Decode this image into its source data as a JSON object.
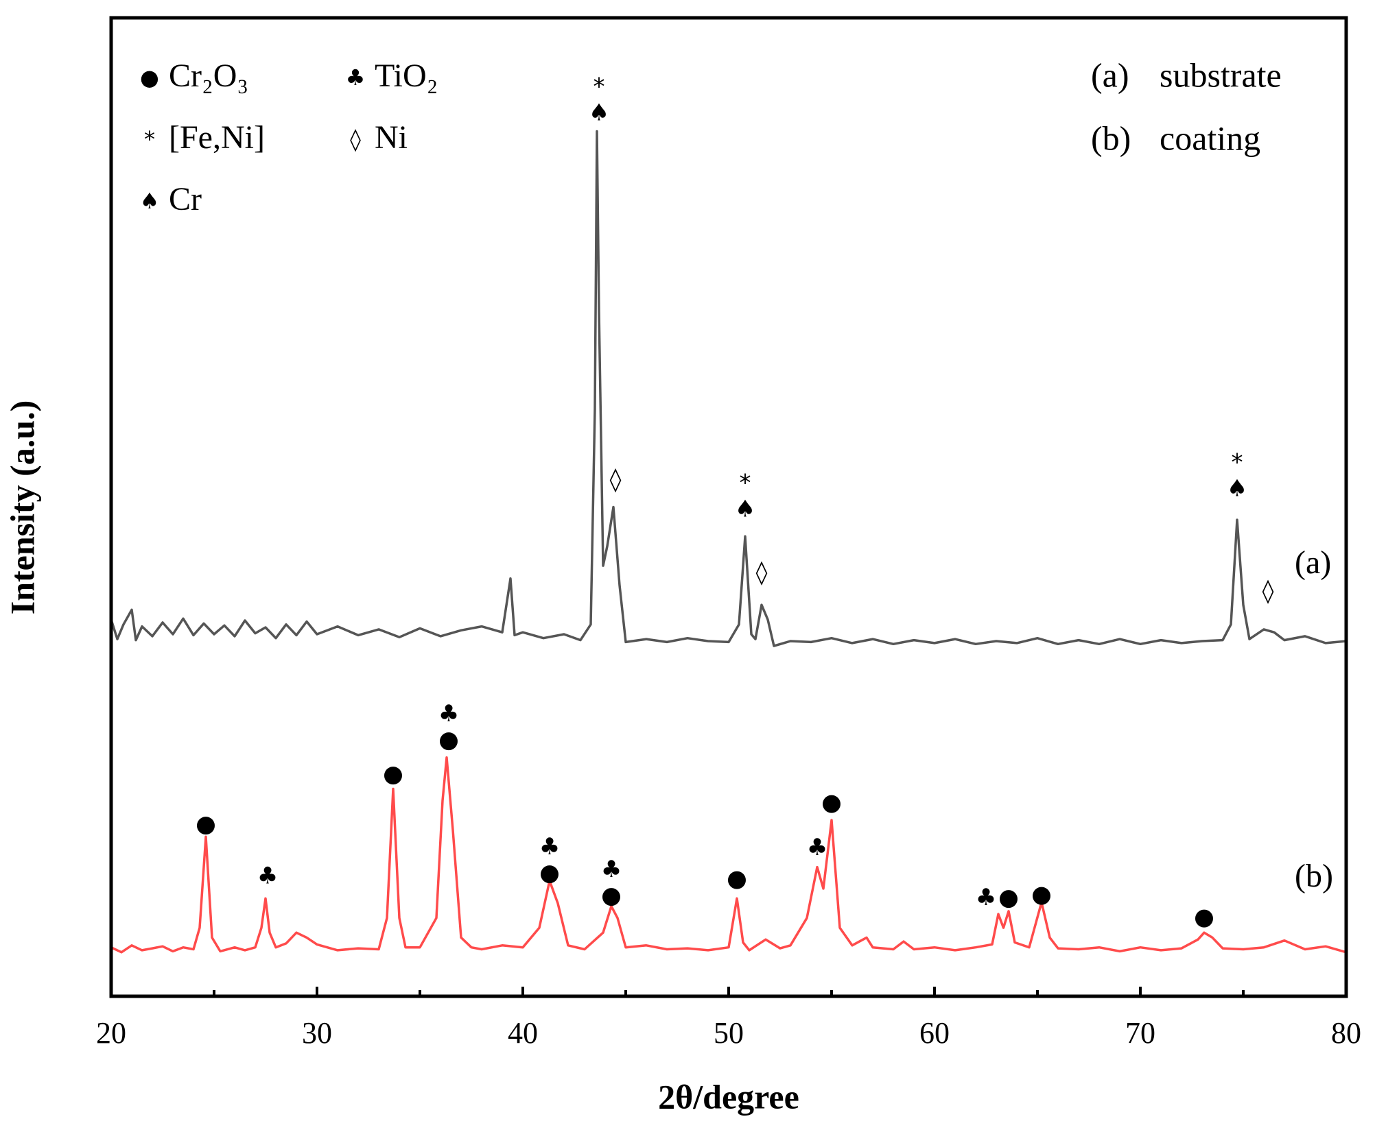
{
  "chart_data": {
    "type": "line",
    "x_label": "2θ/degree",
    "y_label": "Intensity (a.u.)",
    "xlim": [
      20,
      80
    ],
    "xticks": [
      20,
      30,
      40,
      50,
      60,
      70,
      80
    ],
    "xminorticks": [
      25,
      35,
      45,
      55,
      65,
      75
    ],
    "ylim": [
      0,
      100
    ],
    "legend": [
      {
        "symbol": "●",
        "label": "Cr₂O₃"
      },
      {
        "symbol": "♣",
        "label": "TiO₂"
      },
      {
        "symbol": "*",
        "label": "[Fe,Ni]"
      },
      {
        "symbol": "◊",
        "label": "Ni"
      },
      {
        "symbol": "♠",
        "label": "Cr"
      }
    ],
    "series": [
      {
        "name": "(a)",
        "description": "substrate",
        "color": "#555555",
        "x": [
          20,
          20.3,
          20.6,
          21,
          21.2,
          21.5,
          22,
          22.5,
          23,
          23.5,
          24,
          24.5,
          25,
          25.5,
          26,
          26.5,
          27,
          27.5,
          28,
          28.5,
          29,
          29.5,
          30,
          31,
          32,
          33,
          34,
          35,
          36,
          37,
          38,
          39,
          39.4,
          39.6,
          40,
          41,
          42,
          42.8,
          43.3,
          43.5,
          43.6,
          43.7,
          43.9,
          44.1,
          44.4,
          44.7,
          45,
          46,
          47,
          48,
          49,
          50,
          50.5,
          50.8,
          51.1,
          51.3,
          51.6,
          51.9,
          52.2,
          53,
          54,
          55,
          56,
          57,
          58,
          59,
          60,
          61,
          62,
          63,
          64,
          65,
          66,
          67,
          68,
          69,
          70,
          71,
          72,
          73,
          74,
          74.4,
          74.7,
          75,
          75.3,
          76,
          76.5,
          77,
          78,
          79,
          80
        ],
        "values": [
          38.5,
          36.5,
          38,
          39.5,
          36.4,
          37.8,
          36.8,
          38.2,
          37,
          38.6,
          36.9,
          38.1,
          37,
          37.9,
          36.8,
          38.4,
          37.1,
          37.7,
          36.6,
          38,
          36.9,
          38.3,
          37,
          37.8,
          36.9,
          37.5,
          36.7,
          37.6,
          36.8,
          37.4,
          37.8,
          37.2,
          42.7,
          36.9,
          37.2,
          36.6,
          37,
          36.4,
          38,
          60,
          88.4,
          70,
          44,
          46,
          50,
          42,
          36.2,
          36.5,
          36.2,
          36.6,
          36.3,
          36.2,
          38,
          47,
          37,
          36.5,
          40,
          38.5,
          35.8,
          36.3,
          36.2,
          36.6,
          36.1,
          36.5,
          36,
          36.4,
          36.1,
          36.5,
          36,
          36.3,
          36.1,
          36.6,
          36,
          36.4,
          36,
          36.5,
          36,
          36.4,
          36.1,
          36.3,
          36.4,
          38,
          48.7,
          40,
          36.5,
          37.5,
          37.2,
          36.4,
          36.8,
          36.1,
          36.3
        ],
        "label_pos": [
          77.5,
          44
        ],
        "annotations": [
          {
            "x": 43.7,
            "y": 90.2,
            "labels": [
              "*",
              "♠"
            ]
          },
          {
            "x": 44.5,
            "y": 52.7,
            "labels": [
              "◊"
            ]
          },
          {
            "x": 50.8,
            "y": 49.7,
            "labels": [
              "*",
              "♠"
            ]
          },
          {
            "x": 51.6,
            "y": 43.2,
            "labels": [
              "◊"
            ]
          },
          {
            "x": 74.7,
            "y": 51.8,
            "labels": [
              "*",
              "♠"
            ]
          },
          {
            "x": 76.2,
            "y": 41.3,
            "labels": [
              "◊"
            ]
          }
        ]
      },
      {
        "name": "(b)",
        "description": "coating",
        "color": "#ff4b4b",
        "x": [
          20,
          20.5,
          21,
          21.5,
          22,
          22.5,
          23,
          23.5,
          24,
          24.3,
          24.6,
          24.9,
          25.3,
          26,
          26.5,
          27,
          27.3,
          27.5,
          27.7,
          28,
          28.5,
          29,
          29.5,
          30,
          30.5,
          31,
          32,
          33,
          33.4,
          33.7,
          34,
          34.3,
          35,
          35.8,
          36.1,
          36.3,
          36.6,
          37,
          37.5,
          38,
          39,
          40,
          40.8,
          41.3,
          41.7,
          42.2,
          43,
          43.9,
          44.3,
          44.6,
          45,
          46,
          47,
          48,
          49,
          50,
          50.4,
          50.7,
          51,
          51.8,
          52.5,
          53,
          53.8,
          54.3,
          54.6,
          55,
          55.4,
          56,
          56.7,
          57,
          58,
          58.5,
          59,
          60,
          61,
          62,
          62.8,
          63.1,
          63.35,
          63.6,
          63.9,
          64.6,
          65.2,
          65.6,
          66,
          67,
          68,
          69,
          70,
          71,
          72,
          72.8,
          73.1,
          73.5,
          74,
          75,
          76,
          77,
          78,
          79,
          80
        ],
        "values": [
          5,
          4.5,
          5.2,
          4.7,
          4.9,
          5.1,
          4.6,
          5,
          4.8,
          7,
          16.3,
          6,
          4.6,
          5,
          4.7,
          5,
          7,
          10,
          6.5,
          5,
          5.4,
          6.5,
          6,
          5.3,
          5,
          4.7,
          4.9,
          4.8,
          8,
          21.2,
          8,
          5,
          5,
          8,
          20,
          24.4,
          17,
          6,
          5,
          4.8,
          5.2,
          5,
          7,
          11.8,
          9.5,
          5.2,
          4.8,
          6.5,
          9.2,
          8,
          5,
          5.2,
          4.8,
          4.9,
          4.7,
          5,
          10,
          5.5,
          4.7,
          5.8,
          4.9,
          5.2,
          8,
          13.2,
          11,
          18,
          7,
          5.2,
          6,
          5,
          4.8,
          5.6,
          4.8,
          5,
          4.7,
          5,
          5.3,
          8.4,
          7,
          8.7,
          5.5,
          5,
          9.6,
          6,
          4.9,
          4.8,
          5,
          4.6,
          5,
          4.7,
          4.9,
          5.8,
          6.5,
          6,
          4.9,
          4.8,
          5,
          5.7,
          4.8,
          5.1,
          4.5
        ],
        "label_pos": [
          77.5,
          12
        ],
        "annotations": [
          {
            "x": 24.6,
            "y": 17.5,
            "labels": [
              "●"
            ]
          },
          {
            "x": 27.6,
            "y": 12.2,
            "labels": [
              "♣"
            ]
          },
          {
            "x": 33.7,
            "y": 22.6,
            "labels": [
              "●"
            ]
          },
          {
            "x": 36.4,
            "y": 26.1,
            "labels": [
              "♣",
              "●"
            ]
          },
          {
            "x": 41.3,
            "y": 12.5,
            "labels": [
              "♣",
              "●"
            ]
          },
          {
            "x": 44.3,
            "y": 10.2,
            "labels": [
              "♣",
              "●"
            ]
          },
          {
            "x": 50.4,
            "y": 11.9,
            "labels": [
              "●"
            ]
          },
          {
            "x": 54.3,
            "y": 15.1,
            "labels": [
              "♣"
            ]
          },
          {
            "x": 55,
            "y": 19.7,
            "labels": [
              "●"
            ]
          },
          {
            "x": 62.5,
            "y": 10,
            "labels": [
              "♣"
            ]
          },
          {
            "x": 63.6,
            "y": 10,
            "labels": [
              "●"
            ]
          },
          {
            "x": 65.2,
            "y": 10.3,
            "labels": [
              "●"
            ]
          },
          {
            "x": 73.1,
            "y": 8,
            "labels": [
              "●"
            ]
          }
        ]
      }
    ]
  }
}
